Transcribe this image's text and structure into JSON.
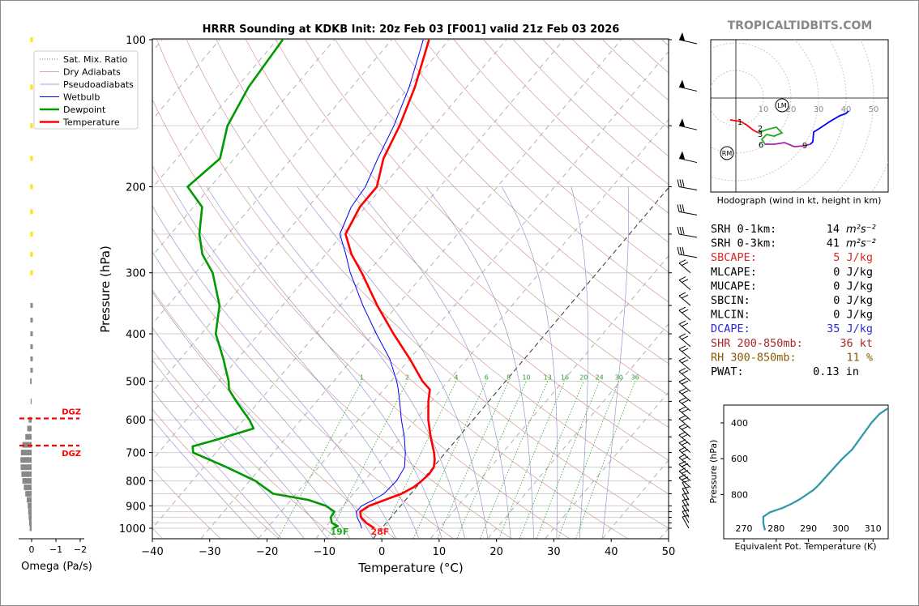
{
  "chart_data": {
    "type": "skew-t",
    "title": "HRRR Sounding at KDKB Init: 20z Feb 03 [F001] valid 21z Feb 03 2026",
    "site_credit": "TROPICALTIDBITS.COM",
    "xlabel": "Temperature (°C)",
    "ylabel": "Pressure (hPa)",
    "xlim": [
      -40,
      50
    ],
    "ylim": [
      1050,
      100
    ],
    "x_ticks": [
      "−40",
      "−30",
      "−20",
      "−10",
      "0",
      "10",
      "20",
      "30",
      "40",
      "50"
    ],
    "y_ticks": [
      "100",
      "200",
      "300",
      "400",
      "500",
      "600",
      "700",
      "800",
      "900",
      "1000"
    ],
    "legend": [
      {
        "label": "Sat. Mix. Ratio",
        "color": "#2ca02c",
        "style": "dotted"
      },
      {
        "label": "Dry Adiabats",
        "color": "#cc8888",
        "style": "solid-thin"
      },
      {
        "label": "Pseudoadiabats",
        "color": "#8888cc",
        "style": "solid-thin"
      },
      {
        "label": "Wetbulb",
        "color": "#0000ff",
        "style": "solid"
      },
      {
        "label": "Dewpoint",
        "color": "#009900",
        "style": "thick"
      },
      {
        "label": "Temperature",
        "color": "#ff0000",
        "style": "thick"
      }
    ],
    "legend_position": "top-left",
    "series": [
      {
        "name": "Temperature",
        "color": "#ff0000",
        "points": [
          [
            1000,
            -1.3
          ],
          [
            975,
            -3.5
          ],
          [
            950,
            -5.2
          ],
          [
            925,
            -6.2
          ],
          [
            900,
            -5.5
          ],
          [
            875,
            -3.6
          ],
          [
            850,
            -1.6
          ],
          [
            825,
            -0.5
          ],
          [
            800,
            0
          ],
          [
            775,
            0.3
          ],
          [
            750,
            0.1
          ],
          [
            725,
            -0.8
          ],
          [
            700,
            -2.0
          ],
          [
            650,
            -4.9
          ],
          [
            600,
            -7.8
          ],
          [
            550,
            -10.5
          ],
          [
            520,
            -12.0
          ],
          [
            500,
            -14.5
          ],
          [
            450,
            -20
          ],
          [
            400,
            -26.5
          ],
          [
            350,
            -33.5
          ],
          [
            300,
            -41
          ],
          [
            275,
            -45.5
          ],
          [
            250,
            -49.5
          ],
          [
            220,
            -51
          ],
          [
            200,
            -51
          ],
          [
            175,
            -54
          ],
          [
            150,
            -56
          ],
          [
            125,
            -59
          ],
          [
            100,
            -63.5
          ]
        ]
      },
      {
        "name": "Dewpoint",
        "color": "#009900",
        "points": [
          [
            1000,
            -8.5
          ],
          [
            990,
            -8.0
          ],
          [
            975,
            -9.5
          ],
          [
            950,
            -10.5
          ],
          [
            925,
            -10.7
          ],
          [
            900,
            -13
          ],
          [
            875,
            -17
          ],
          [
            850,
            -24
          ],
          [
            800,
            -29
          ],
          [
            750,
            -36
          ],
          [
            700,
            -44
          ],
          [
            680,
            -45
          ],
          [
            660,
            -42
          ],
          [
            625,
            -37
          ],
          [
            600,
            -39
          ],
          [
            550,
            -44
          ],
          [
            520,
            -47
          ],
          [
            500,
            -48.3
          ],
          [
            450,
            -52.5
          ],
          [
            400,
            -57.5
          ],
          [
            350,
            -61
          ],
          [
            300,
            -67
          ],
          [
            275,
            -71.5
          ],
          [
            250,
            -75
          ],
          [
            220,
            -78.5
          ],
          [
            200,
            -84
          ],
          [
            175,
            -82.5
          ],
          [
            150,
            -86
          ],
          [
            125,
            -88
          ],
          [
            100,
            -89
          ]
        ]
      },
      {
        "name": "Wetbulb",
        "color": "#0000ff",
        "points": [
          [
            1000,
            -3.5
          ],
          [
            975,
            -4.6
          ],
          [
            950,
            -5.9
          ],
          [
            925,
            -6.9
          ],
          [
            900,
            -6.8
          ],
          [
            875,
            -5.6
          ],
          [
            850,
            -4.7
          ],
          [
            800,
            -4.4
          ],
          [
            750,
            -5
          ],
          [
            700,
            -7
          ],
          [
            650,
            -9.5
          ],
          [
            600,
            -12.5
          ],
          [
            550,
            -15.5
          ],
          [
            520,
            -17.5
          ],
          [
            500,
            -19
          ],
          [
            450,
            -23.5
          ],
          [
            400,
            -29.5
          ],
          [
            350,
            -36
          ],
          [
            300,
            -43
          ],
          [
            275,
            -46.5
          ],
          [
            250,
            -50.5
          ],
          [
            220,
            -52.5
          ],
          [
            200,
            -53
          ],
          [
            175,
            -55
          ],
          [
            150,
            -57
          ],
          [
            125,
            -60
          ],
          [
            100,
            -64.5
          ]
        ]
      }
    ],
    "surface_labels": {
      "dewpoint": "19F",
      "temperature": "28F"
    },
    "dgz_labels": [
      "DGZ",
      "DGZ"
    ],
    "mixing_ratio_labels": [
      "1",
      "2",
      "4",
      "6",
      "8",
      "10",
      "13",
      "16",
      "20",
      "24",
      "30",
      "36"
    ],
    "omega": {
      "xlabel": "Omega (Pa/s)",
      "x_ticks": [
        "0",
        "−1",
        "−2"
      ],
      "profile": [
        [
          1000,
          0.08
        ],
        [
          975,
          0.1
        ],
        [
          950,
          0.12
        ],
        [
          925,
          0.14
        ],
        [
          900,
          0.16
        ],
        [
          875,
          0.2
        ],
        [
          850,
          0.26
        ],
        [
          825,
          0.32
        ],
        [
          800,
          0.38
        ],
        [
          775,
          0.42
        ],
        [
          750,
          0.45
        ],
        [
          725,
          0.46
        ],
        [
          700,
          0.44
        ],
        [
          675,
          0.38
        ],
        [
          650,
          0.26
        ],
        [
          625,
          0.18
        ],
        [
          600,
          0.12
        ],
        [
          550,
          0.04
        ],
        [
          500,
          0.06
        ],
        [
          475,
          0.05
        ],
        [
          450,
          0.07
        ],
        [
          425,
          0.06
        ],
        [
          400,
          0.07
        ],
        [
          375,
          0.04
        ],
        [
          350,
          0.02
        ],
        [
          300,
          0.02
        ],
        [
          275,
          0.02
        ],
        [
          250,
          0.07
        ],
        [
          225,
          0.06
        ],
        [
          200,
          0.08
        ],
        [
          175,
          0.06
        ],
        [
          150,
          0.05
        ],
        [
          125,
          0.04
        ],
        [
          100,
          0.03
        ]
      ]
    },
    "hodograph": {
      "title": "Hodograph (wind in kt, height in km)",
      "ring_labels": [
        "10",
        "20",
        "30",
        "40",
        "50"
      ],
      "height_labels": [
        "1",
        "2",
        "3",
        "6",
        "9"
      ],
      "markers": [
        "LM",
        "RM"
      ]
    },
    "indices": [
      {
        "label": "SRH 0-1km:",
        "value": "14",
        "unit": "m²s⁻²",
        "color": "#000000"
      },
      {
        "label": "SRH 0-3km:",
        "value": "41",
        "unit": "m²s⁻²",
        "color": "#000000"
      },
      {
        "label": "SBCAPE:",
        "value": "5 J/kg",
        "unit": "",
        "color": "#d62728"
      },
      {
        "label": "MLCAPE:",
        "value": "0 J/kg",
        "unit": "",
        "color": "#000000"
      },
      {
        "label": "MUCAPE:",
        "value": "0 J/kg",
        "unit": "",
        "color": "#000000"
      },
      {
        "label": "SBCIN:",
        "value": "0 J/kg",
        "unit": "",
        "color": "#000000"
      },
      {
        "label": "MLCIN:",
        "value": "0 J/kg",
        "unit": "",
        "color": "#000000"
      },
      {
        "label": "DCAPE:",
        "value": "35 J/kg",
        "unit": "",
        "color": "#2a2acc"
      },
      {
        "label": "SHR 200-850mb:",
        "value": "36 kt",
        "unit": "",
        "color": "#a52a2a"
      },
      {
        "label": "RH 300-850mb:",
        "value": "11 %",
        "unit": "",
        "color": "#8b5a00"
      },
      {
        "label": "PWAT:",
        "value": "0.13 in",
        "unit": "",
        "color": "#000000"
      }
    ],
    "theta_e": {
      "xlabel": "Equivalent Pot. Temperature (K)",
      "ylabel": "Pressure (hPa)",
      "x_ticks": [
        "270",
        "280",
        "290",
        "300",
        "310"
      ],
      "y_ticks": [
        "400",
        "600",
        "800"
      ],
      "profile": [
        [
          1000,
          276.5
        ],
        [
          960,
          276
        ],
        [
          925,
          276
        ],
        [
          900,
          278
        ],
        [
          875,
          282
        ],
        [
          850,
          285
        ],
        [
          825,
          287.5
        ],
        [
          800,
          289.5
        ],
        [
          775,
          291.5
        ],
        [
          750,
          293
        ],
        [
          700,
          295.5
        ],
        [
          650,
          298
        ],
        [
          600,
          300.5
        ],
        [
          550,
          303.5
        ],
        [
          500,
          305.5
        ],
        [
          450,
          307.5
        ],
        [
          400,
          309.5
        ],
        [
          350,
          312
        ],
        [
          320,
          314.5
        ]
      ]
    }
  }
}
